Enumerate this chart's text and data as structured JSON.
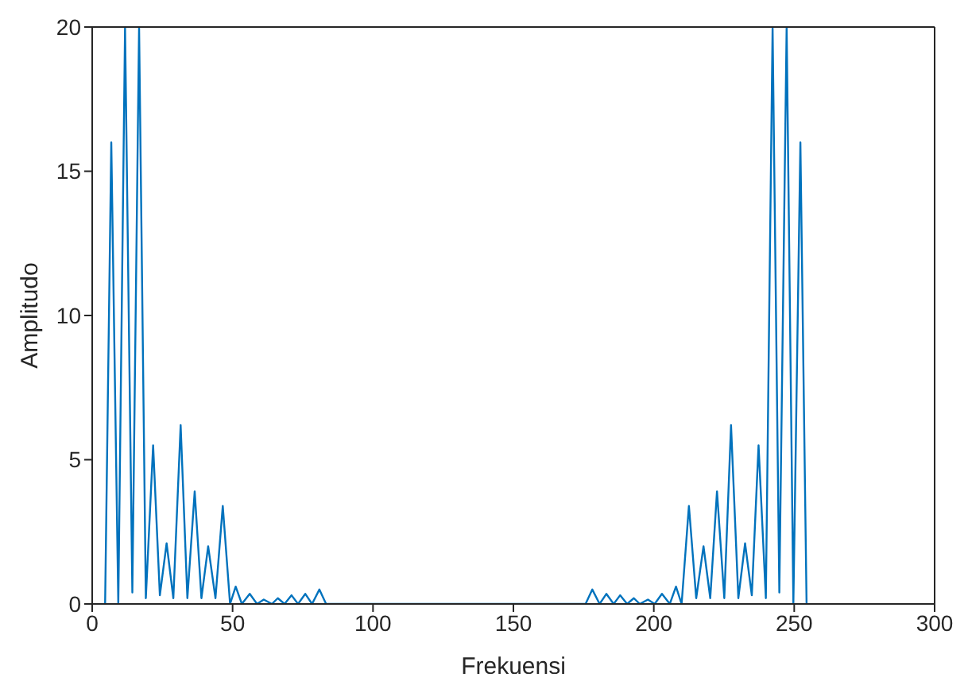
{
  "chart_data": {
    "type": "line",
    "xlabel": "Frekuensi",
    "ylabel": "Amplitudo",
    "x": [
      4.6,
      6.8,
      9.3,
      11.7,
      14.3,
      16.7,
      19.1,
      21.7,
      24.1,
      26.5,
      28.9,
      31.5,
      33.9,
      36.5,
      38.9,
      41.3,
      43.9,
      46.5,
      49.1,
      51.1,
      53.3,
      56.1,
      58.7,
      61.1,
      64,
      66.1,
      68.5,
      71,
      73.3,
      75.9,
      78.3,
      80.9,
      83.3,
      175.7,
      178.1,
      180.7,
      183.1,
      185.7,
      188,
      190.5,
      192.9,
      195,
      197.9,
      200.3,
      202.9,
      205.7,
      207.9,
      209.9,
      212.5,
      215.1,
      217.7,
      220.1,
      222.5,
      225.1,
      227.5,
      230.1,
      232.5,
      234.9,
      237.3,
      239.9,
      242.3,
      244.7,
      247.3,
      249.7,
      252.2,
      254.4
    ],
    "series": [
      {
        "color": "#0072bd",
        "values": [
          0,
          16,
          0,
          20,
          0.4,
          20,
          0.2,
          5.5,
          0.3,
          2.1,
          0.2,
          6.2,
          0.2,
          3.9,
          0.2,
          2,
          0.2,
          3.4,
          0,
          0.6,
          0,
          0.35,
          0,
          0.15,
          0,
          0.2,
          0,
          0.3,
          0,
          0.35,
          0,
          0.5,
          0,
          0,
          0.5,
          0,
          0.35,
          0,
          0.3,
          0,
          0.2,
          0,
          0.15,
          0,
          0.35,
          0,
          0.6,
          0,
          3.4,
          0.2,
          2,
          0.2,
          3.9,
          0.2,
          6.2,
          0.2,
          2.1,
          0.3,
          5.5,
          0.2,
          20,
          0.4,
          20,
          0,
          16,
          0
        ]
      }
    ],
    "xlim": [
      0,
      300
    ],
    "xticks": [
      0,
      50,
      100,
      150,
      200,
      250,
      300
    ],
    "ylim": [
      0,
      20
    ],
    "yticks": [
      0,
      5,
      10,
      15,
      20
    ],
    "grid": false,
    "legend": false,
    "marker": "none",
    "line_style": "solid"
  }
}
